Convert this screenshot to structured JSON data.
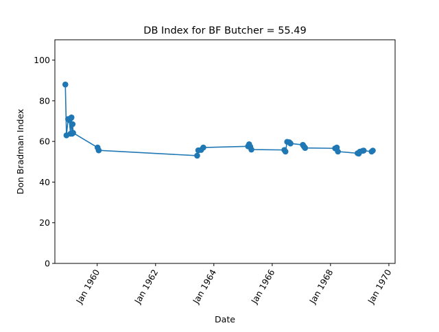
{
  "chart_data": {
    "type": "line",
    "title": "DB Index for BF Butcher = 55.49",
    "xlabel": "Date",
    "ylabel": "Don Bradman Index",
    "xlim": [
      "1958-07-20",
      "1970-03-20"
    ],
    "ylim": [
      0,
      110
    ],
    "x_ticks": [
      {
        "date": "1960-01-01",
        "label": "Jan 1960"
      },
      {
        "date": "1962-01-01",
        "label": "Jan 1962"
      },
      {
        "date": "1964-01-01",
        "label": "Jan 1964"
      },
      {
        "date": "1966-01-01",
        "label": "Jan 1966"
      },
      {
        "date": "1968-01-01",
        "label": "Jan 1968"
      },
      {
        "date": "1970-01-01",
        "label": "Jan 1970"
      }
    ],
    "y_ticks": [
      0,
      20,
      40,
      60,
      80,
      100
    ],
    "grid": false,
    "line_color": "#1f77b4",
    "marker": "circle",
    "series": [
      {
        "x": [
          "1958-11-28",
          "1958-12-12",
          "1959-01-02",
          "1959-01-16",
          "1959-02-01",
          "1959-02-08",
          "1959-02-13",
          "1959-02-20",
          "1959-02-27",
          "1959-03-06",
          "1960-01-06",
          "1960-01-20",
          "1963-06-06",
          "1963-06-20",
          "1963-07-25",
          "1963-08-22",
          "1965-03-05",
          "1965-03-18",
          "1965-04-01",
          "1965-04-15",
          "1966-06-02",
          "1966-06-16",
          "1966-07-07",
          "1966-08-04",
          "1966-08-18",
          "1967-01-20",
          "1967-02-03",
          "1967-02-17",
          "1968-02-28",
          "1968-03-10",
          "1968-03-20",
          "1968-04-03",
          "1968-12-05",
          "1968-12-20",
          "1969-01-03",
          "1969-02-07",
          "1969-02-20",
          "1969-05-30",
          "1969-06-14"
        ],
        "y": [
          88.0,
          63.0,
          71.0,
          70.5,
          63.8,
          71.5,
          71.8,
          63.8,
          68.5,
          64.2,
          57.0,
          55.6,
          53.0,
          55.6,
          55.8,
          57.0,
          57.6,
          58.6,
          57.4,
          56.0,
          55.8,
          55.0,
          59.8,
          59.6,
          59.0,
          58.3,
          57.5,
          56.8,
          56.6,
          56.5,
          57.0,
          55.0,
          54.2,
          54.0,
          55.0,
          55.4,
          55.5,
          55.0,
          55.5
        ]
      }
    ]
  }
}
